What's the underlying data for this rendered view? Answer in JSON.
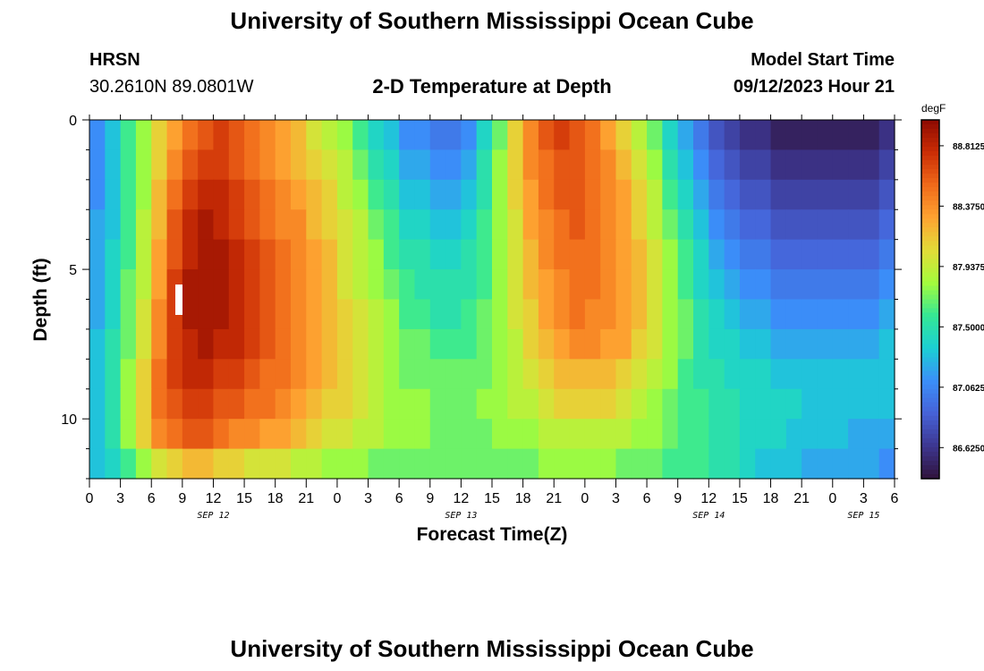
{
  "page": {
    "title": "University of Southern Mississippi Ocean Cube",
    "title_repeat": "University of Southern Mississippi Ocean Cube",
    "station_name": "HRSN",
    "station_coords": "30.2610N  89.0801W",
    "model_start_label": "Model Start Time",
    "model_start_value": "09/12/2023 Hour 21"
  },
  "chart_data": {
    "type": "heatmap",
    "title": "2-D Temperature at Depth",
    "xlabel": "Forecast Time(Z)",
    "ylabel": "Depth (ft)",
    "x_tick_labels": [
      "0",
      "3",
      "6",
      "9",
      "12",
      "15",
      "18",
      "21",
      "0",
      "3",
      "6",
      "9",
      "12",
      "15",
      "18",
      "21",
      "0",
      "3",
      "6",
      "9",
      "12",
      "15",
      "18",
      "21",
      "0",
      "3",
      "6"
    ],
    "date_labels": [
      {
        "label": "SEP 12",
        "tick_index": 4
      },
      {
        "label": "SEP 13",
        "tick_index": 12
      },
      {
        "label": "SEP 14",
        "tick_index": 20
      },
      {
        "label": "SEP 15",
        "tick_index": 25
      }
    ],
    "y_tick_labels": [
      0,
      5,
      10
    ],
    "y_range": [
      0,
      12
    ],
    "y_axis_reversed": true,
    "colorbar": {
      "unit": "degF",
      "tick_labels": [
        "88.8125",
        "88.3750",
        "87.9375",
        "87.5000",
        "87.0625",
        "86.6250"
      ],
      "range": [
        86.4,
        89.0
      ],
      "colors": [
        "#30123b",
        "#3d3791",
        "#4662d7",
        "#3b8ff9",
        "#1bcfd4",
        "#35e895",
        "#a4fc3c",
        "#e2dc38",
        "#fea331",
        "#f06a1a",
        "#cb2d05",
        "#8d0a02"
      ]
    },
    "x": [
      0,
      1.5,
      3,
      4.5,
      6,
      7.5,
      9,
      10.5,
      12,
      13.5,
      15,
      16.5,
      18,
      19.5,
      21,
      22.5,
      24,
      25.5,
      27,
      28.5,
      30,
      31.5,
      33,
      34.5,
      36,
      37.5,
      39,
      40.5,
      42,
      43.5,
      45,
      46.5,
      48,
      49.5,
      51,
      52.5,
      54,
      55.5,
      57,
      58.5,
      60,
      61.5,
      63,
      64.5,
      66,
      67.5,
      69,
      70.5,
      72,
      73.5,
      75,
      76.5,
      78
    ],
    "depths": [
      0.5,
      1.5,
      2.5,
      3.5,
      4.5,
      5.5,
      6.5,
      7.5,
      8.5,
      9.5,
      10.5,
      11.5
    ],
    "values": [
      [
        87.1,
        87.3,
        87.6,
        87.8,
        88.1,
        88.3,
        88.5,
        88.6,
        88.7,
        88.6,
        88.5,
        88.4,
        88.3,
        88.2,
        88.0,
        87.9,
        87.8,
        87.6,
        87.4,
        87.3,
        87.1,
        87.1,
        87.0,
        87.0,
        87.1,
        87.4,
        87.7,
        88.1,
        88.4,
        88.6,
        88.7,
        88.6,
        88.5,
        88.3,
        88.1,
        87.9,
        87.7,
        87.4,
        87.2,
        87.0,
        86.8,
        86.7,
        86.6,
        86.6,
        86.5,
        86.5,
        86.5,
        86.5,
        86.5,
        86.5,
        86.5,
        86.6,
        86.6
      ],
      [
        87.1,
        87.3,
        87.6,
        87.8,
        88.1,
        88.4,
        88.6,
        88.7,
        88.7,
        88.6,
        88.5,
        88.4,
        88.3,
        88.2,
        88.1,
        88.0,
        87.9,
        87.7,
        87.5,
        87.4,
        87.2,
        87.2,
        87.1,
        87.1,
        87.2,
        87.5,
        87.8,
        88.1,
        88.4,
        88.5,
        88.6,
        88.6,
        88.5,
        88.4,
        88.2,
        88.0,
        87.8,
        87.5,
        87.3,
        87.1,
        86.9,
        86.8,
        86.7,
        86.7,
        86.6,
        86.6,
        86.6,
        86.6,
        86.6,
        86.6,
        86.6,
        86.7,
        86.7
      ],
      [
        87.1,
        87.3,
        87.6,
        87.8,
        88.2,
        88.5,
        88.7,
        88.8,
        88.8,
        88.7,
        88.6,
        88.5,
        88.4,
        88.3,
        88.2,
        88.1,
        87.9,
        87.8,
        87.6,
        87.5,
        87.3,
        87.3,
        87.2,
        87.2,
        87.3,
        87.5,
        87.8,
        88.1,
        88.3,
        88.5,
        88.6,
        88.6,
        88.5,
        88.4,
        88.3,
        88.1,
        87.9,
        87.6,
        87.4,
        87.2,
        87.0,
        86.9,
        86.8,
        86.8,
        86.7,
        86.7,
        86.7,
        86.7,
        86.7,
        86.7,
        86.7,
        86.8,
        86.8
      ],
      [
        87.2,
        87.3,
        87.6,
        87.9,
        88.2,
        88.6,
        88.8,
        88.9,
        88.8,
        88.7,
        88.6,
        88.5,
        88.4,
        88.4,
        88.2,
        88.1,
        88.0,
        87.9,
        87.7,
        87.6,
        87.4,
        87.4,
        87.3,
        87.3,
        87.4,
        87.6,
        87.8,
        88.0,
        88.3,
        88.4,
        88.5,
        88.6,
        88.5,
        88.4,
        88.3,
        88.1,
        87.9,
        87.7,
        87.5,
        87.3,
        87.1,
        87.0,
        86.9,
        86.9,
        86.8,
        86.8,
        86.8,
        86.8,
        86.8,
        86.8,
        86.8,
        86.9,
        86.9
      ],
      [
        87.2,
        87.4,
        87.6,
        87.9,
        88.3,
        88.6,
        88.8,
        88.9,
        88.9,
        88.8,
        88.7,
        88.6,
        88.5,
        88.4,
        88.3,
        88.2,
        88.0,
        87.9,
        87.8,
        87.6,
        87.5,
        87.5,
        87.4,
        87.4,
        87.5,
        87.6,
        87.8,
        88.0,
        88.2,
        88.4,
        88.5,
        88.5,
        88.5,
        88.4,
        88.3,
        88.2,
        88.0,
        87.8,
        87.6,
        87.4,
        87.2,
        87.1,
        87.0,
        87.0,
        86.9,
        86.9,
        86.9,
        86.9,
        86.9,
        86.9,
        86.9,
        87.0,
        87.0
      ],
      [
        87.2,
        87.4,
        87.7,
        87.9,
        88.3,
        88.7,
        88.9,
        88.9,
        88.9,
        88.8,
        88.7,
        88.6,
        88.5,
        88.4,
        88.3,
        88.2,
        88.0,
        87.9,
        87.8,
        87.7,
        87.6,
        87.5,
        87.5,
        87.5,
        87.5,
        87.6,
        87.8,
        88.0,
        88.2,
        88.3,
        88.4,
        88.5,
        88.5,
        88.4,
        88.3,
        88.2,
        88.0,
        87.8,
        87.6,
        87.4,
        87.3,
        87.2,
        87.1,
        87.1,
        87.0,
        87.0,
        87.0,
        87.0,
        87.0,
        87.0,
        87.0,
        87.1,
        87.1
      ],
      [
        87.2,
        87.4,
        87.7,
        88.0,
        88.4,
        88.7,
        88.9,
        88.9,
        88.9,
        88.8,
        88.7,
        88.6,
        88.5,
        88.4,
        88.3,
        88.2,
        88.1,
        88.0,
        87.9,
        87.8,
        87.6,
        87.6,
        87.5,
        87.5,
        87.6,
        87.7,
        87.8,
        88.0,
        88.1,
        88.3,
        88.4,
        88.5,
        88.4,
        88.4,
        88.3,
        88.2,
        88.0,
        87.8,
        87.7,
        87.5,
        87.4,
        87.3,
        87.2,
        87.2,
        87.1,
        87.1,
        87.1,
        87.1,
        87.1,
        87.1,
        87.1,
        87.2,
        87.2
      ],
      [
        87.3,
        87.5,
        87.7,
        88.0,
        88.4,
        88.7,
        88.8,
        88.9,
        88.8,
        88.8,
        88.7,
        88.6,
        88.5,
        88.4,
        88.3,
        88.2,
        88.1,
        88.0,
        87.9,
        87.8,
        87.7,
        87.7,
        87.6,
        87.6,
        87.6,
        87.7,
        87.8,
        87.9,
        88.1,
        88.2,
        88.3,
        88.4,
        88.4,
        88.3,
        88.3,
        88.1,
        88.0,
        87.8,
        87.7,
        87.5,
        87.4,
        87.4,
        87.3,
        87.3,
        87.2,
        87.2,
        87.2,
        87.2,
        87.2,
        87.2,
        87.2,
        87.3,
        87.3
      ],
      [
        87.3,
        87.5,
        87.8,
        88.1,
        88.5,
        88.7,
        88.8,
        88.8,
        88.7,
        88.7,
        88.6,
        88.5,
        88.5,
        88.4,
        88.3,
        88.2,
        88.1,
        88.0,
        87.9,
        87.8,
        87.7,
        87.7,
        87.7,
        87.7,
        87.7,
        87.7,
        87.8,
        87.9,
        88.0,
        88.1,
        88.2,
        88.2,
        88.2,
        88.2,
        88.1,
        88.0,
        87.9,
        87.8,
        87.6,
        87.5,
        87.5,
        87.4,
        87.4,
        87.4,
        87.3,
        87.3,
        87.3,
        87.3,
        87.3,
        87.3,
        87.3,
        87.3,
        87.3
      ],
      [
        87.3,
        87.5,
        87.8,
        88.1,
        88.5,
        88.6,
        88.7,
        88.7,
        88.6,
        88.6,
        88.5,
        88.5,
        88.4,
        88.3,
        88.2,
        88.1,
        88.1,
        88.0,
        87.9,
        87.8,
        87.8,
        87.8,
        87.7,
        87.7,
        87.7,
        87.8,
        87.8,
        87.9,
        87.9,
        88.0,
        88.1,
        88.1,
        88.1,
        88.1,
        88.0,
        87.9,
        87.8,
        87.7,
        87.6,
        87.6,
        87.5,
        87.5,
        87.4,
        87.4,
        87.4,
        87.4,
        87.3,
        87.3,
        87.3,
        87.3,
        87.3,
        87.3,
        87.3
      ],
      [
        87.3,
        87.5,
        87.8,
        88.1,
        88.4,
        88.5,
        88.6,
        88.6,
        88.5,
        88.4,
        88.4,
        88.3,
        88.3,
        88.2,
        88.1,
        88.0,
        88.0,
        87.9,
        87.9,
        87.8,
        87.8,
        87.8,
        87.7,
        87.7,
        87.7,
        87.7,
        87.8,
        87.8,
        87.8,
        87.9,
        87.9,
        87.9,
        87.9,
        87.9,
        87.9,
        87.8,
        87.8,
        87.7,
        87.6,
        87.6,
        87.5,
        87.5,
        87.4,
        87.4,
        87.4,
        87.3,
        87.3,
        87.3,
        87.3,
        87.2,
        87.2,
        87.2,
        87.2
      ],
      [
        87.3,
        87.4,
        87.6,
        87.8,
        88.0,
        88.1,
        88.2,
        88.2,
        88.1,
        88.1,
        88.0,
        88.0,
        88.0,
        87.9,
        87.9,
        87.8,
        87.8,
        87.8,
        87.7,
        87.7,
        87.7,
        87.7,
        87.7,
        87.7,
        87.7,
        87.7,
        87.7,
        87.7,
        87.7,
        87.8,
        87.8,
        87.8,
        87.8,
        87.8,
        87.7,
        87.7,
        87.7,
        87.6,
        87.6,
        87.6,
        87.5,
        87.5,
        87.4,
        87.3,
        87.3,
        87.3,
        87.2,
        87.2,
        87.2,
        87.2,
        87.2,
        87.1,
        87.1
      ]
    ]
  }
}
